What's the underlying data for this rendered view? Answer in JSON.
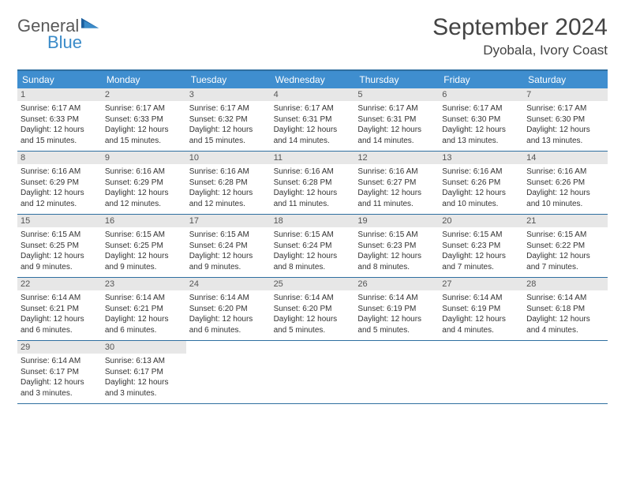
{
  "logo": {
    "general": "General",
    "blue": "Blue"
  },
  "title": "September 2024",
  "location": "Dyobala, Ivory Coast",
  "header_bg": "#3f8ecf",
  "rule_color": "#2f6fa0",
  "daynum_bg": "#e7e7e7",
  "weekdays": [
    "Sunday",
    "Monday",
    "Tuesday",
    "Wednesday",
    "Thursday",
    "Friday",
    "Saturday"
  ],
  "weeks": [
    [
      {
        "n": "1",
        "sr": "Sunrise: 6:17 AM",
        "ss": "Sunset: 6:33 PM",
        "d1": "Daylight: 12 hours",
        "d2": "and 15 minutes."
      },
      {
        "n": "2",
        "sr": "Sunrise: 6:17 AM",
        "ss": "Sunset: 6:33 PM",
        "d1": "Daylight: 12 hours",
        "d2": "and 15 minutes."
      },
      {
        "n": "3",
        "sr": "Sunrise: 6:17 AM",
        "ss": "Sunset: 6:32 PM",
        "d1": "Daylight: 12 hours",
        "d2": "and 15 minutes."
      },
      {
        "n": "4",
        "sr": "Sunrise: 6:17 AM",
        "ss": "Sunset: 6:31 PM",
        "d1": "Daylight: 12 hours",
        "d2": "and 14 minutes."
      },
      {
        "n": "5",
        "sr": "Sunrise: 6:17 AM",
        "ss": "Sunset: 6:31 PM",
        "d1": "Daylight: 12 hours",
        "d2": "and 14 minutes."
      },
      {
        "n": "6",
        "sr": "Sunrise: 6:17 AM",
        "ss": "Sunset: 6:30 PM",
        "d1": "Daylight: 12 hours",
        "d2": "and 13 minutes."
      },
      {
        "n": "7",
        "sr": "Sunrise: 6:17 AM",
        "ss": "Sunset: 6:30 PM",
        "d1": "Daylight: 12 hours",
        "d2": "and 13 minutes."
      }
    ],
    [
      {
        "n": "8",
        "sr": "Sunrise: 6:16 AM",
        "ss": "Sunset: 6:29 PM",
        "d1": "Daylight: 12 hours",
        "d2": "and 12 minutes."
      },
      {
        "n": "9",
        "sr": "Sunrise: 6:16 AM",
        "ss": "Sunset: 6:29 PM",
        "d1": "Daylight: 12 hours",
        "d2": "and 12 minutes."
      },
      {
        "n": "10",
        "sr": "Sunrise: 6:16 AM",
        "ss": "Sunset: 6:28 PM",
        "d1": "Daylight: 12 hours",
        "d2": "and 12 minutes."
      },
      {
        "n": "11",
        "sr": "Sunrise: 6:16 AM",
        "ss": "Sunset: 6:28 PM",
        "d1": "Daylight: 12 hours",
        "d2": "and 11 minutes."
      },
      {
        "n": "12",
        "sr": "Sunrise: 6:16 AM",
        "ss": "Sunset: 6:27 PM",
        "d1": "Daylight: 12 hours",
        "d2": "and 11 minutes."
      },
      {
        "n": "13",
        "sr": "Sunrise: 6:16 AM",
        "ss": "Sunset: 6:26 PM",
        "d1": "Daylight: 12 hours",
        "d2": "and 10 minutes."
      },
      {
        "n": "14",
        "sr": "Sunrise: 6:16 AM",
        "ss": "Sunset: 6:26 PM",
        "d1": "Daylight: 12 hours",
        "d2": "and 10 minutes."
      }
    ],
    [
      {
        "n": "15",
        "sr": "Sunrise: 6:15 AM",
        "ss": "Sunset: 6:25 PM",
        "d1": "Daylight: 12 hours",
        "d2": "and 9 minutes."
      },
      {
        "n": "16",
        "sr": "Sunrise: 6:15 AM",
        "ss": "Sunset: 6:25 PM",
        "d1": "Daylight: 12 hours",
        "d2": "and 9 minutes."
      },
      {
        "n": "17",
        "sr": "Sunrise: 6:15 AM",
        "ss": "Sunset: 6:24 PM",
        "d1": "Daylight: 12 hours",
        "d2": "and 9 minutes."
      },
      {
        "n": "18",
        "sr": "Sunrise: 6:15 AM",
        "ss": "Sunset: 6:24 PM",
        "d1": "Daylight: 12 hours",
        "d2": "and 8 minutes."
      },
      {
        "n": "19",
        "sr": "Sunrise: 6:15 AM",
        "ss": "Sunset: 6:23 PM",
        "d1": "Daylight: 12 hours",
        "d2": "and 8 minutes."
      },
      {
        "n": "20",
        "sr": "Sunrise: 6:15 AM",
        "ss": "Sunset: 6:23 PM",
        "d1": "Daylight: 12 hours",
        "d2": "and 7 minutes."
      },
      {
        "n": "21",
        "sr": "Sunrise: 6:15 AM",
        "ss": "Sunset: 6:22 PM",
        "d1": "Daylight: 12 hours",
        "d2": "and 7 minutes."
      }
    ],
    [
      {
        "n": "22",
        "sr": "Sunrise: 6:14 AM",
        "ss": "Sunset: 6:21 PM",
        "d1": "Daylight: 12 hours",
        "d2": "and 6 minutes."
      },
      {
        "n": "23",
        "sr": "Sunrise: 6:14 AM",
        "ss": "Sunset: 6:21 PM",
        "d1": "Daylight: 12 hours",
        "d2": "and 6 minutes."
      },
      {
        "n": "24",
        "sr": "Sunrise: 6:14 AM",
        "ss": "Sunset: 6:20 PM",
        "d1": "Daylight: 12 hours",
        "d2": "and 6 minutes."
      },
      {
        "n": "25",
        "sr": "Sunrise: 6:14 AM",
        "ss": "Sunset: 6:20 PM",
        "d1": "Daylight: 12 hours",
        "d2": "and 5 minutes."
      },
      {
        "n": "26",
        "sr": "Sunrise: 6:14 AM",
        "ss": "Sunset: 6:19 PM",
        "d1": "Daylight: 12 hours",
        "d2": "and 5 minutes."
      },
      {
        "n": "27",
        "sr": "Sunrise: 6:14 AM",
        "ss": "Sunset: 6:19 PM",
        "d1": "Daylight: 12 hours",
        "d2": "and 4 minutes."
      },
      {
        "n": "28",
        "sr": "Sunrise: 6:14 AM",
        "ss": "Sunset: 6:18 PM",
        "d1": "Daylight: 12 hours",
        "d2": "and 4 minutes."
      }
    ],
    [
      {
        "n": "29",
        "sr": "Sunrise: 6:14 AM",
        "ss": "Sunset: 6:17 PM",
        "d1": "Daylight: 12 hours",
        "d2": "and 3 minutes."
      },
      {
        "n": "30",
        "sr": "Sunrise: 6:13 AM",
        "ss": "Sunset: 6:17 PM",
        "d1": "Daylight: 12 hours",
        "d2": "and 3 minutes."
      },
      null,
      null,
      null,
      null,
      null
    ]
  ]
}
